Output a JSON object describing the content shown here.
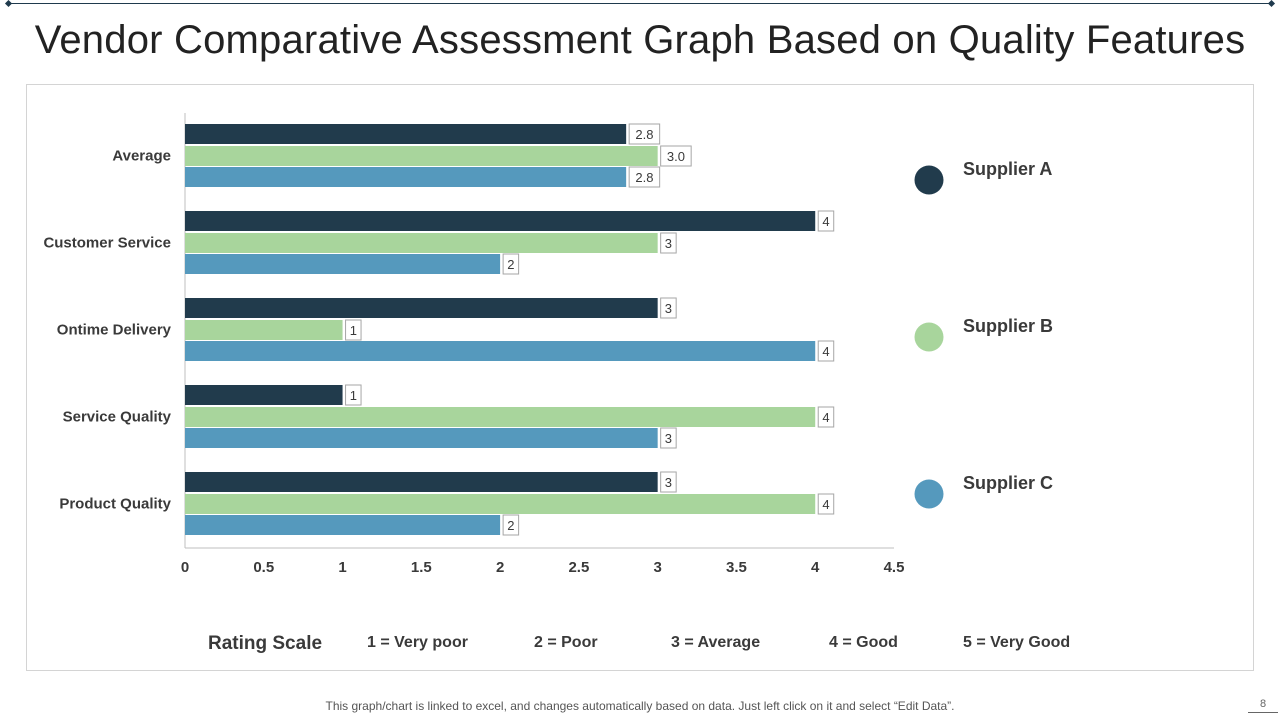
{
  "page": {
    "title": "Vendor Comparative Assessment Graph Based on Quality Features",
    "footnote": "This graph/chart is linked to excel, and changes automatically based on data. Just left click on it and select “Edit Data”.",
    "page_number": "8"
  },
  "colors": {
    "supplier_a": "#213b4c",
    "supplier_b": "#a8d59c",
    "supplier_c": "#5599bd"
  },
  "chart_data": {
    "type": "bar",
    "orientation": "horizontal",
    "title": "",
    "categories": [
      "Average",
      "Customer Service",
      "Ontime Delivery",
      "Service Quality",
      "Product Quality"
    ],
    "series": [
      {
        "name": "Supplier A",
        "values": [
          2.8,
          4,
          3,
          1,
          3
        ],
        "labels": [
          "2.8",
          "4",
          "3",
          "1",
          "3"
        ]
      },
      {
        "name": "Supplier B",
        "values": [
          3.0,
          3,
          1,
          4,
          4
        ],
        "labels": [
          "3.0",
          "3",
          "1",
          "4",
          "4"
        ]
      },
      {
        "name": "Supplier C",
        "values": [
          2.8,
          2,
          4,
          3,
          2
        ],
        "labels": [
          "2.8",
          "2",
          "4",
          "3",
          "2"
        ]
      }
    ],
    "xlim": [
      0,
      4.5
    ],
    "xticks": [
      0,
      0.5,
      1,
      1.5,
      2,
      2.5,
      3,
      3.5,
      4,
      4.5
    ],
    "xtick_labels": [
      "0",
      "0.5",
      "1",
      "1.5",
      "2",
      "2.5",
      "3",
      "3.5",
      "4",
      "4.5"
    ],
    "xlabel": "",
    "ylabel": "",
    "grid": false,
    "legend_position": "right"
  },
  "rating_scale": {
    "label": "Rating Scale",
    "items": [
      "1 = Very poor",
      "2 = Poor",
      "3 = Average",
      "4 = Good",
      "5 = Very Good"
    ]
  }
}
